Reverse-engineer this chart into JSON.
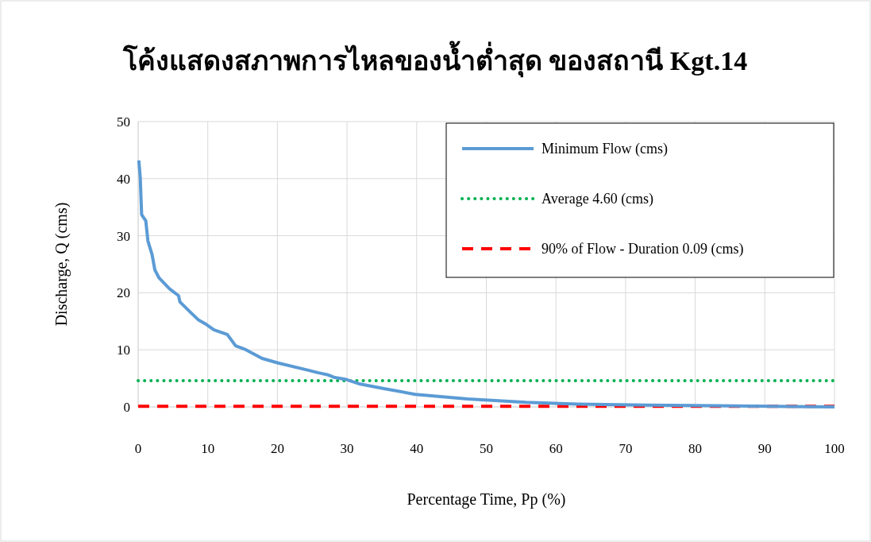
{
  "chart_data": {
    "type": "line",
    "title": "โค้งแสดงสภาพการไหลของน้ำต่ำสุด ของสถานี Kgt.14",
    "xlabel": "Percentage Time, Pp (%)",
    "ylabel": "Discharge, Q (cms)",
    "xlim": [
      0,
      100
    ],
    "ylim": [
      0,
      50
    ],
    "xticks": [
      0,
      10,
      20,
      30,
      40,
      50,
      60,
      70,
      80,
      90,
      100
    ],
    "yticks": [
      0,
      10,
      20,
      30,
      40,
      50
    ],
    "grid": true,
    "legend": "top right",
    "series": [
      {
        "name": "Minimum Flow (cms)",
        "color": "#5b9bd5",
        "line_style": "solid",
        "x": [
          0.1,
          0.3,
          0.5,
          1.1,
          1.4,
          2.0,
          2.4,
          3.0,
          4.5,
          5.8,
          6.0,
          7.5,
          8.7,
          9.6,
          10.9,
          12.8,
          14.0,
          15.5,
          17.8,
          20.1,
          24.2,
          25.8,
          27.3,
          28.1,
          29.9,
          31.9,
          35.3,
          39.8,
          47.3,
          55.7,
          63.1,
          73.1,
          83.0,
          100
        ],
        "values": [
          43.2,
          40.2,
          33.7,
          32.6,
          29.1,
          26.7,
          24.0,
          22.6,
          20.7,
          19.5,
          18.4,
          16.6,
          15.2,
          14.6,
          13.5,
          12.7,
          10.7,
          10.0,
          8.5,
          7.7,
          6.5,
          6.0,
          5.6,
          5.2,
          4.8,
          4.0,
          3.2,
          2.2,
          1.4,
          0.8,
          0.5,
          0.3,
          0.2,
          0.0
        ]
      },
      {
        "name": "Average 4.60 (cms)",
        "color": "#00b050",
        "line_style": "dotted",
        "x": [
          0,
          100
        ],
        "values": [
          4.6,
          4.6
        ]
      },
      {
        "name": "90% of Flow - Duration 0.09 (cms)",
        "color": "#ff0000",
        "line_style": "dashed",
        "x": [
          0,
          100
        ],
        "values": [
          0.09,
          0.09
        ]
      }
    ]
  }
}
